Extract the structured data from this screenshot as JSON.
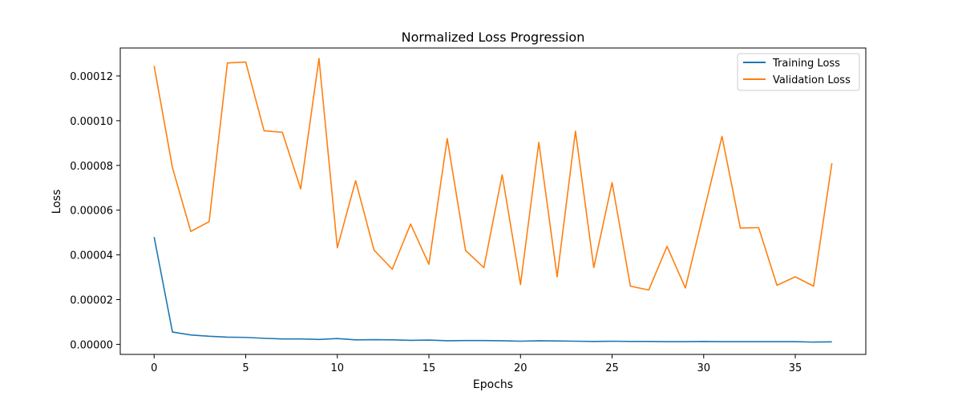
{
  "chart_data": {
    "type": "line",
    "title": "Normalized Loss Progression",
    "xlabel": "Epochs",
    "ylabel": "Loss",
    "xlim": [
      -1.85,
      38.85
    ],
    "ylim": [
      -4.5e-06,
      0.0001325
    ],
    "xticks": [
      0,
      5,
      10,
      15,
      20,
      25,
      30,
      35
    ],
    "xtick_labels": [
      "0",
      "5",
      "10",
      "15",
      "20",
      "25",
      "30",
      "35"
    ],
    "yticks": [
      0,
      2e-05,
      4e-05,
      6e-05,
      8e-05,
      0.0001,
      0.00012
    ],
    "ytick_labels": [
      "0.00000",
      "0.00002",
      "0.00004",
      "0.00006",
      "0.00008",
      "0.00010",
      "0.00012"
    ],
    "grid": false,
    "legend": "top-right",
    "x": [
      0,
      1,
      2,
      3,
      4,
      5,
      6,
      7,
      8,
      9,
      10,
      11,
      12,
      13,
      14,
      15,
      16,
      17,
      18,
      19,
      20,
      21,
      22,
      23,
      24,
      25,
      26,
      27,
      28,
      29,
      30,
      31,
      32,
      33,
      34,
      35,
      36,
      37
    ],
    "series": [
      {
        "name": "Training Loss",
        "color": "#1f77b4",
        "values": [
          4.8e-05,
          5.5e-06,
          4.2e-06,
          3.6e-06,
          3.2e-06,
          3.1e-06,
          2.7e-06,
          2.4e-06,
          2.4e-06,
          2.2e-06,
          2.6e-06,
          2e-06,
          2.1e-06,
          2e-06,
          1.8e-06,
          1.9e-06,
          1.6e-06,
          1.7e-06,
          1.7e-06,
          1.6e-06,
          1.4e-06,
          1.6e-06,
          1.5e-06,
          1.4e-06,
          1.3e-06,
          1.4e-06,
          1.3e-06,
          1.3e-06,
          1.2e-06,
          1.2e-06,
          1.3e-06,
          1.2e-06,
          1.2e-06,
          1.2e-06,
          1.2e-06,
          1.2e-06,
          1e-06,
          1.1e-06
        ]
      },
      {
        "name": "Validation Loss",
        "color": "#ff7f0e",
        "values": [
          0.0001245,
          7.9e-05,
          5.05e-05,
          5.48e-05,
          0.0001258,
          0.0001262,
          9.55e-05,
          9.48e-05,
          6.95e-05,
          0.0001278,
          4.32e-05,
          7.32e-05,
          4.22e-05,
          3.36e-05,
          5.38e-05,
          3.58e-05,
          9.2e-05,
          4.2e-05,
          3.43e-05,
          7.58e-05,
          2.67e-05,
          9.03e-05,
          3.02e-05,
          9.53e-05,
          3.43e-05,
          7.23e-05,
          2.6e-05,
          2.43e-05,
          4.38e-05,
          2.52e-05,
          5.9e-05,
          9.3e-05,
          5.2e-05,
          5.22e-05,
          2.64e-05,
          3.02e-05,
          2.6e-05,
          8.1e-05
        ]
      }
    ]
  }
}
